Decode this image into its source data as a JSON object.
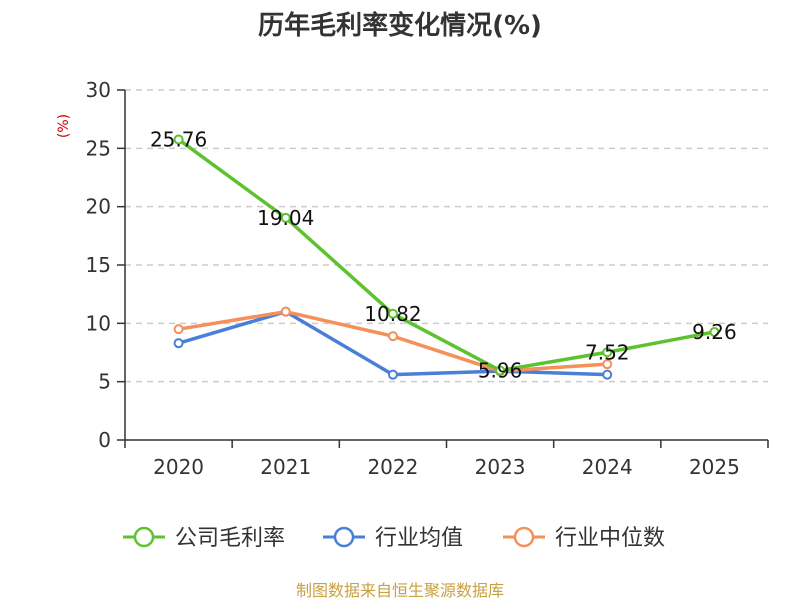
{
  "chart_data": {
    "type": "line",
    "title": "历年毛利率变化情况(%)",
    "ylabel": "(%)",
    "xlabel": "",
    "categories": [
      "2020",
      "2021",
      "2022",
      "2023",
      "2024",
      "2025"
    ],
    "ylim": [
      0,
      30
    ],
    "yticks": [
      0,
      5,
      10,
      15,
      20,
      25,
      30
    ],
    "grid": true,
    "legend_position": "bottom",
    "series": [
      {
        "name": "公司毛利率",
        "color": "#5cc22f",
        "values": [
          25.76,
          19.04,
          10.82,
          5.96,
          7.52,
          9.26
        ],
        "labels": [
          "25.76",
          "19.04",
          "10.82",
          "5.96",
          "7.52",
          "9.26"
        ]
      },
      {
        "name": "行业均值",
        "color": "#4a7fd8",
        "values": [
          8.3,
          11.0,
          5.6,
          5.9,
          5.6,
          null
        ]
      },
      {
        "name": "行业中位数",
        "color": "#f5905a",
        "values": [
          9.5,
          11.0,
          8.9,
          5.9,
          6.5,
          null
        ]
      }
    ]
  },
  "source": "制图数据来自恒生聚源数据库"
}
